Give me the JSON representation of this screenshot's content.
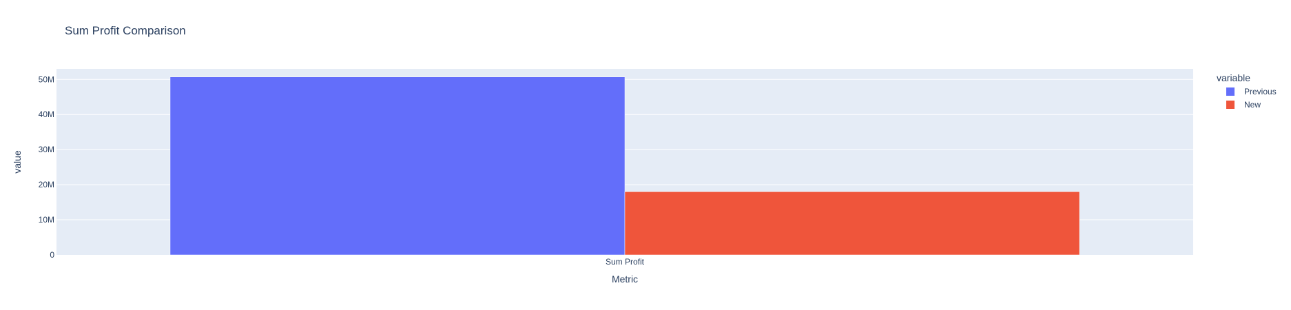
{
  "chart_data": {
    "type": "bar",
    "barmode": "group",
    "title": "Sum Profit Comparison",
    "xlabel": "Metric",
    "ylabel": "value",
    "categories": [
      "Sum Profit"
    ],
    "series": [
      {
        "name": "Previous",
        "values": [
          50700000
        ],
        "color": "#636efa"
      },
      {
        "name": "New",
        "values": [
          18000000
        ],
        "color": "#ef553b"
      }
    ],
    "ylim": [
      0,
      53000000
    ],
    "yticks": [
      {
        "value": 0,
        "label": "0"
      },
      {
        "value": 10000000,
        "label": "10M"
      },
      {
        "value": 20000000,
        "label": "20M"
      },
      {
        "value": 30000000,
        "label": "30M"
      },
      {
        "value": 40000000,
        "label": "40M"
      },
      {
        "value": 50000000,
        "label": "50M"
      }
    ],
    "grid": true,
    "legend": {
      "title": "variable",
      "position": "right"
    },
    "plot_bg": "#e5ecf6"
  }
}
